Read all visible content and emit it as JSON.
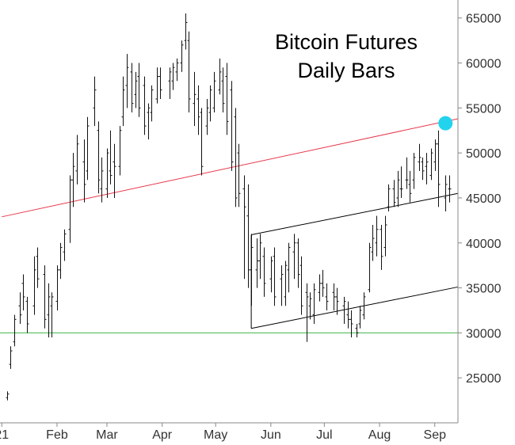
{
  "chart_data": {
    "type": "ohlc-bar",
    "title_lines": [
      "Bitcoin Futures",
      "Daily Bars"
    ],
    "x_tick_labels": [
      "21",
      "Feb",
      "Mar",
      "Apr",
      "May",
      "Jun",
      "Jul",
      "Aug",
      "Sep"
    ],
    "y_ticks": [
      25000,
      30000,
      35000,
      40000,
      45000,
      50000,
      55000,
      60000,
      65000
    ],
    "y_tick_labels": [
      "25000",
      "30000",
      "35000",
      "40000",
      "45000",
      "50000",
      "55000",
      "60000",
      "65000"
    ],
    "ylim": [
      20000,
      67000
    ],
    "xlim": [
      "2020-12-31",
      "2021-09-14"
    ],
    "grid": false,
    "dates": [
      "2021-01-04",
      "2021-01-06",
      "2021-01-08",
      "2021-01-11",
      "2021-01-13",
      "2021-01-15",
      "2021-01-19",
      "2021-01-21",
      "2021-01-25",
      "2021-01-27",
      "2021-01-29",
      "2021-02-01",
      "2021-02-03",
      "2021-02-05",
      "2021-02-08",
      "2021-02-10",
      "2021-02-12",
      "2021-02-16",
      "2021-02-18",
      "2021-02-22",
      "2021-02-24",
      "2021-02-26",
      "2021-03-01",
      "2021-03-03",
      "2021-03-05",
      "2021-03-08",
      "2021-03-10",
      "2021-03-12",
      "2021-03-15",
      "2021-03-17",
      "2021-03-19",
      "2021-03-22",
      "2021-03-24",
      "2021-03-26",
      "2021-03-29",
      "2021-03-31",
      "2021-04-05",
      "2021-04-07",
      "2021-04-09",
      "2021-04-12",
      "2021-04-14",
      "2021-04-16",
      "2021-04-19",
      "2021-04-21",
      "2021-04-23",
      "2021-04-26",
      "2021-04-28",
      "2021-04-30",
      "2021-05-03",
      "2021-05-05",
      "2021-05-07",
      "2021-05-10",
      "2021-05-12",
      "2021-05-14",
      "2021-05-17",
      "2021-05-19",
      "2021-05-21",
      "2021-05-24",
      "2021-05-26",
      "2021-05-28",
      "2021-06-01",
      "2021-06-03",
      "2021-06-07",
      "2021-06-09",
      "2021-06-11",
      "2021-06-14",
      "2021-06-16",
      "2021-06-18",
      "2021-06-21",
      "2021-06-23",
      "2021-06-25",
      "2021-06-28",
      "2021-06-30",
      "2021-07-02",
      "2021-07-06",
      "2021-07-08",
      "2021-07-12",
      "2021-07-14",
      "2021-07-16",
      "2021-07-19",
      "2021-07-21",
      "2021-07-23",
      "2021-07-26",
      "2021-07-28",
      "2021-07-30",
      "2021-08-02",
      "2021-08-04",
      "2021-08-06",
      "2021-08-09",
      "2021-08-11",
      "2021-08-13",
      "2021-08-16",
      "2021-08-18",
      "2021-08-20",
      "2021-08-23",
      "2021-08-25",
      "2021-08-27",
      "2021-08-30",
      "2021-09-01",
      "2021-09-03",
      "2021-09-07",
      "2021-09-09"
    ],
    "highs": [
      23500,
      28500,
      32000,
      34500,
      36500,
      34000,
      38500,
      39500,
      37500,
      35500,
      34500,
      37500,
      40000,
      41500,
      47500,
      50000,
      52000,
      51500,
      54000,
      58500,
      53500,
      49500,
      50500,
      52500,
      51000,
      53000,
      58500,
      61000,
      60000,
      59000,
      60000,
      58500,
      55500,
      57500,
      59500,
      59500,
      59500,
      60000,
      60500,
      62500,
      65500,
      63500,
      59000,
      57500,
      55000,
      56000,
      57500,
      59000,
      60500,
      59500,
      60000,
      58000,
      55000,
      51000,
      47500,
      46500,
      41000,
      40500,
      41000,
      39500,
      38500,
      39500,
      37500,
      38000,
      40000,
      41000,
      40500,
      38500,
      35500,
      34500,
      35500,
      36500,
      37000,
      35500,
      35500,
      35000,
      34000,
      33500,
      32500,
      31000,
      33000,
      34500,
      40000,
      42000,
      43000,
      42000,
      43000,
      46500,
      47000,
      48000,
      48500,
      49500,
      48000,
      50000,
      51000,
      49500,
      50000,
      50500,
      51500,
      52500,
      47500,
      47500
    ],
    "lows": [
      22500,
      26000,
      28500,
      31000,
      32500,
      30000,
      32000,
      35000,
      30500,
      29500,
      29500,
      32500,
      36000,
      38000,
      40000,
      44000,
      46500,
      44500,
      47000,
      53000,
      45500,
      44500,
      45000,
      46500,
      45000,
      47500,
      53000,
      55000,
      54500,
      55000,
      54000,
      52000,
      51500,
      53500,
      55500,
      56000,
      56000,
      57000,
      58000,
      59000,
      61500,
      54500,
      53000,
      52000,
      47500,
      52000,
      53500,
      54500,
      56500,
      54500,
      52000,
      48000,
      44000,
      44000,
      36000,
      35000,
      33000,
      35000,
      36000,
      34000,
      34500,
      33000,
      33000,
      33000,
      34500,
      36000,
      35000,
      32000,
      29000,
      31500,
      31000,
      33500,
      34000,
      32500,
      32500,
      32000,
      31000,
      30500,
      29500,
      29500,
      30500,
      31500,
      34500,
      38000,
      38500,
      37000,
      38500,
      43500,
      44000,
      44000,
      45000,
      46000,
      44500,
      46000,
      48000,
      47000,
      46500,
      47000,
      48000,
      44000,
      43500,
      44500
    ],
    "opens": [
      22800,
      26500,
      29000,
      33000,
      35500,
      33500,
      33000,
      38500,
      36500,
      32000,
      33000,
      33500,
      37000,
      39000,
      41500,
      47000,
      48000,
      49000,
      48000,
      55000,
      52500,
      46000,
      46000,
      48000,
      49000,
      48500,
      54000,
      57500,
      59000,
      56500,
      58500,
      57500,
      54500,
      54500,
      56000,
      58500,
      58000,
      58000,
      59000,
      60000,
      62500,
      62500,
      55500,
      56000,
      54500,
      53000,
      54500,
      55000,
      57000,
      58000,
      58500,
      57000,
      54000,
      50000,
      46000,
      43000,
      37000,
      37000,
      38000,
      38500,
      36000,
      38500,
      36000,
      34000,
      37000,
      39000,
      40000,
      37500,
      34500,
      33000,
      32000,
      34500,
      35500,
      34000,
      34500,
      34000,
      33000,
      32000,
      31500,
      30500,
      31000,
      32000,
      34800,
      39000,
      40000,
      41500,
      39500,
      44000,
      46000,
      45000,
      46000,
      47000,
      46500,
      47000,
      49000,
      49000,
      48500,
      47500,
      49000,
      51000,
      45000,
      46000
    ],
    "closes": [
      23200,
      28000,
      31500,
      32000,
      34000,
      31000,
      37000,
      36000,
      31500,
      34000,
      34000,
      37000,
      39500,
      41000,
      47000,
      48500,
      51000,
      46500,
      53000,
      57000,
      47000,
      48000,
      50000,
      47500,
      48500,
      52500,
      57000,
      59500,
      55500,
      58000,
      55000,
      53000,
      55000,
      57000,
      58500,
      57000,
      59000,
      59500,
      60000,
      62000,
      64500,
      56000,
      56500,
      54000,
      48500,
      55000,
      57000,
      58000,
      59000,
      55500,
      53500,
      49000,
      45000,
      45500,
      44000,
      37000,
      39500,
      38000,
      40000,
      35500,
      38000,
      34000,
      36500,
      37500,
      39500,
      40000,
      36500,
      33000,
      34000,
      33800,
      34800,
      35500,
      35000,
      33500,
      34000,
      33500,
      33500,
      31500,
      31000,
      30000,
      32500,
      34000,
      39500,
      40500,
      41500,
      38500,
      42000,
      46000,
      44500,
      47000,
      46000,
      47000,
      45500,
      49500,
      49500,
      48000,
      49000,
      50000,
      51000,
      46500,
      46500,
      46000
    ],
    "trendlines": [
      {
        "color": "#e8374a",
        "start_date": "2021-01-01",
        "start_value": 42900,
        "end_date": "2021-09-14",
        "end_value": 53800
      },
      {
        "color": "#000000",
        "start_date": "2021-05-21",
        "start_value": 40900,
        "end_date": "2021-09-14",
        "end_value": 45500
      },
      {
        "color": "#000000",
        "start_date": "2021-05-21",
        "start_value": 30500,
        "end_date": "2021-09-14",
        "end_value": 35100
      },
      {
        "color": "#000000",
        "start_date": "2021-05-21",
        "start_value": 30500,
        "end_date": "2021-05-21",
        "end_value": 40900
      },
      {
        "color": "#3db64a",
        "start_date": "2020-12-31",
        "start_value": 30000,
        "end_date": "2021-09-14",
        "end_value": 30000
      }
    ],
    "marker": {
      "date": "2021-09-07",
      "value": 53300,
      "color": "#22d3ee"
    }
  }
}
